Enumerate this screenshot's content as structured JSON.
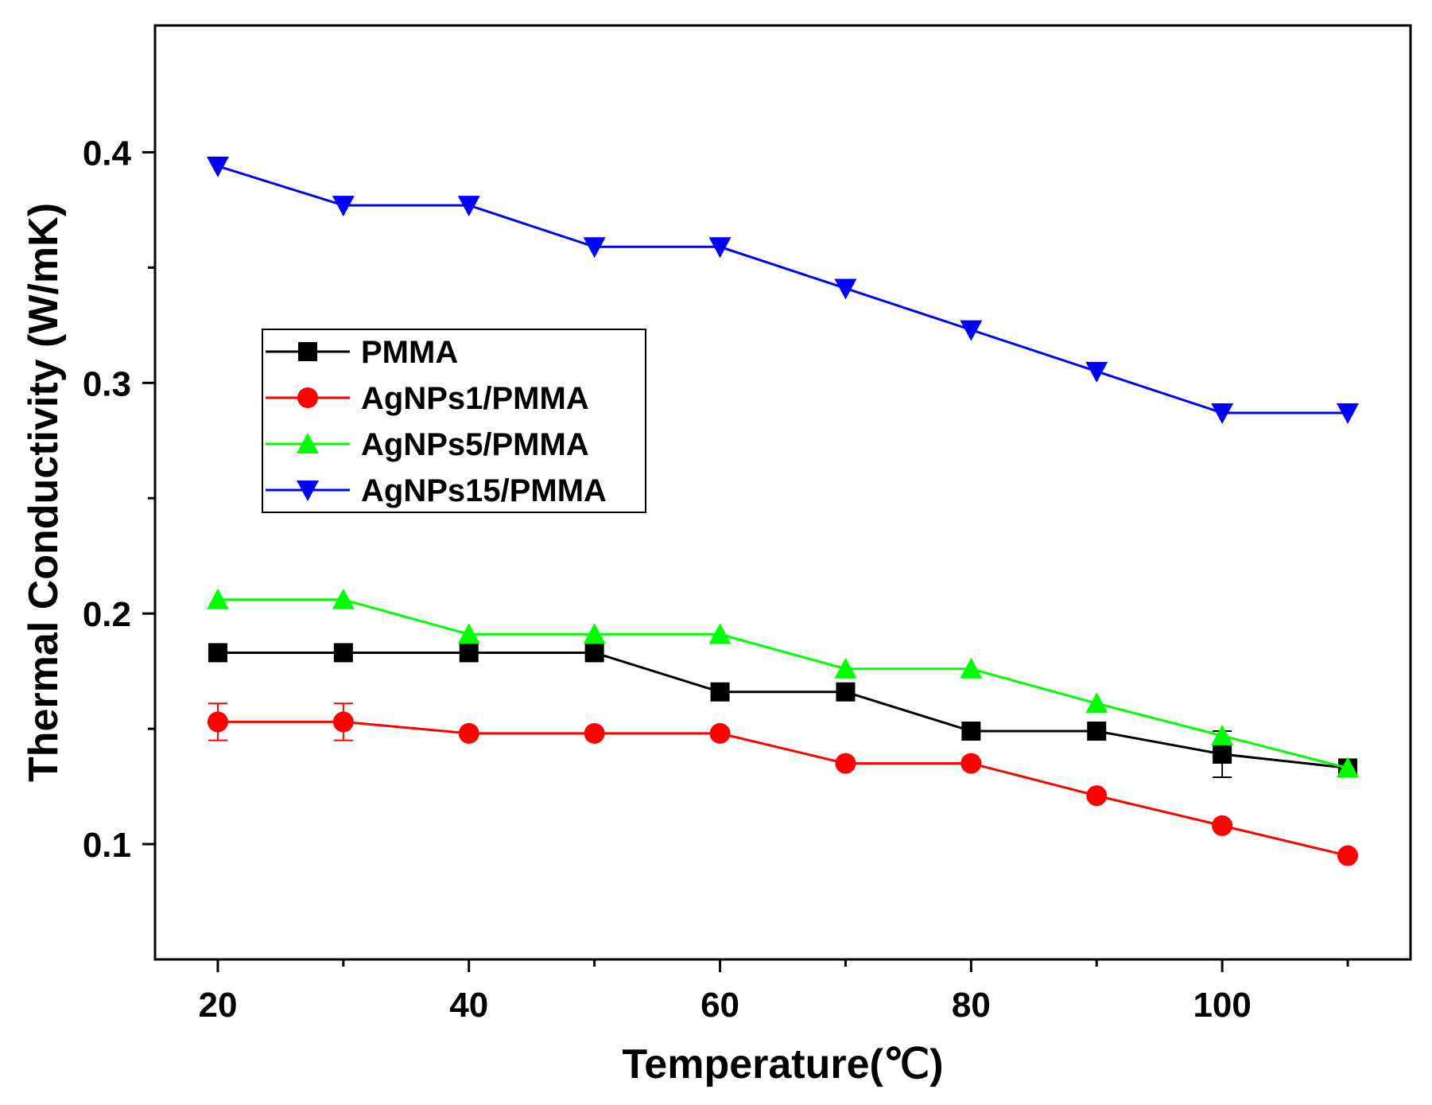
{
  "chart_data": {
    "type": "line",
    "title": "",
    "xlabel": "Temperature(℃)",
    "ylabel": "Thermal Conductivity (W/mK)",
    "xlim": [
      15,
      115
    ],
    "ylim": [
      0.05,
      0.455
    ],
    "xticks": [
      20,
      40,
      60,
      80,
      100
    ],
    "xtick_labels": [
      "20",
      "40",
      "60",
      "80",
      "100"
    ],
    "xminor": [
      30,
      50,
      70,
      90,
      110
    ],
    "yticks": [
      0.1,
      0.2,
      0.3,
      0.4
    ],
    "ytick_labels": [
      "0.1",
      "0.2",
      "0.3",
      "0.4"
    ],
    "yminor": [
      0.15,
      0.25,
      0.35
    ],
    "grid": false,
    "legend_position": "center-left",
    "x": [
      20,
      30,
      40,
      50,
      60,
      70,
      80,
      90,
      100,
      110
    ],
    "series": [
      {
        "name": "PMMA",
        "color": "#000000",
        "marker": "square",
        "values": [
          0.183,
          0.183,
          0.183,
          0.183,
          0.166,
          0.166,
          0.149,
          0.149,
          0.139,
          0.133
        ],
        "error": [
          0,
          0,
          0,
          0,
          0,
          0,
          0,
          0,
          0.01,
          0
        ]
      },
      {
        "name": "AgNPs1/PMMA",
        "color": "#ff0000",
        "marker": "circle",
        "values": [
          0.153,
          0.153,
          0.148,
          0.148,
          0.148,
          0.135,
          0.135,
          0.121,
          0.108,
          0.095
        ],
        "error": [
          0.008,
          0.008,
          0,
          0,
          0,
          0,
          0,
          0,
          0,
          0
        ]
      },
      {
        "name": "AgNPs5/PMMA",
        "color": "#00ff00",
        "marker": "triangle-up",
        "values": [
          0.206,
          0.206,
          0.191,
          0.191,
          0.191,
          0.176,
          0.176,
          0.161,
          0.147,
          0.133
        ],
        "error": [
          0,
          0,
          0,
          0,
          0,
          0,
          0,
          0,
          0,
          0
        ]
      },
      {
        "name": "AgNPs15/PMMA",
        "color": "#0000ff",
        "marker": "triangle-down",
        "values": [
          0.394,
          0.377,
          0.377,
          0.359,
          0.359,
          0.341,
          0.323,
          0.305,
          0.287,
          0.287
        ],
        "error": [
          0,
          0,
          0,
          0,
          0,
          0,
          0,
          0,
          0,
          0
        ]
      }
    ]
  }
}
